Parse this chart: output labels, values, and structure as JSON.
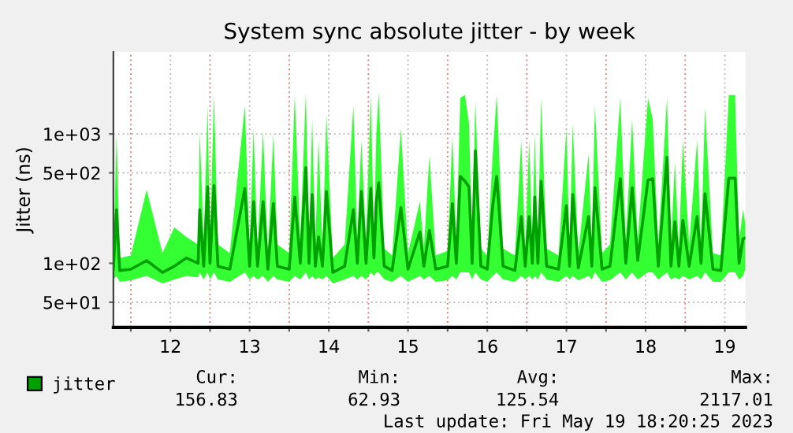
{
  "chart_data": {
    "type": "line",
    "title": "System sync absolute jitter - by week",
    "ylabel": "Jitter (ns)",
    "log": "y",
    "grid": true,
    "legend": "bottom left",
    "marker": "none",
    "line_style": "solid",
    "xlim": [
      11.78,
      19.76
    ],
    "ylim": [
      32,
      4300
    ],
    "xticks": [
      {
        "value": 12,
        "label": null
      },
      {
        "value": 12.5,
        "label": "12"
      },
      {
        "value": 13,
        "label": null
      },
      {
        "value": 13.5,
        "label": "13"
      },
      {
        "value": 14,
        "label": null
      },
      {
        "value": 14.5,
        "label": "14"
      },
      {
        "value": 15,
        "label": null
      },
      {
        "value": 15.5,
        "label": "15"
      },
      {
        "value": 16,
        "label": null
      },
      {
        "value": 16.5,
        "label": "16"
      },
      {
        "value": 17,
        "label": null
      },
      {
        "value": 17.5,
        "label": "17"
      },
      {
        "value": 18,
        "label": null
      },
      {
        "value": 18.5,
        "label": "18"
      },
      {
        "value": 19,
        "label": null
      },
      {
        "value": 19.5,
        "label": "19"
      }
    ],
    "yticks": [
      {
        "value": 50,
        "label": "5e+01"
      },
      {
        "value": 100,
        "label": "1e+02"
      },
      {
        "value": 500,
        "label": "5e+02"
      },
      {
        "value": 1000,
        "label": "1e+03"
      }
    ],
    "annotations": [
      "Cur:",
      "156.83",
      "Min:",
      "62.93",
      "Avg:",
      "125.54",
      "Max:",
      "2117.01",
      "Last update: Fri May 19 18:20:25 2023"
    ],
    "series": [
      {
        "name": "jitter",
        "color": "#00a000",
        "x": [
          11.78,
          11.82,
          11.86,
          12.0,
          12.2,
          12.4,
          12.55,
          12.7,
          12.85,
          12.87,
          12.92,
          12.97,
          13.0,
          13.05,
          13.1,
          13.25,
          13.44,
          13.5,
          13.55,
          13.6,
          13.67,
          13.73,
          13.8,
          13.85,
          14.0,
          14.07,
          14.14,
          14.21,
          14.25,
          14.29,
          14.33,
          14.37,
          14.42,
          14.47,
          14.55,
          14.7,
          14.81,
          14.86,
          14.91,
          14.97,
          15.03,
          15.07,
          15.1,
          15.13,
          15.2,
          15.3,
          15.41,
          15.5,
          15.65,
          15.7,
          15.77,
          15.85,
          16.0,
          16.06,
          16.11,
          16.16,
          16.22,
          16.27,
          16.31,
          16.35,
          16.42,
          16.5,
          16.57,
          16.62,
          16.7,
          16.85,
          16.93,
          16.98,
          17.03,
          17.07,
          17.1,
          17.14,
          17.18,
          17.25,
          17.4,
          17.5,
          17.54,
          17.58,
          17.65,
          17.78,
          17.82,
          17.86,
          17.95,
          18.05,
          18.18,
          18.25,
          18.33,
          18.4,
          18.53,
          18.59,
          18.66,
          18.77,
          18.82,
          18.87,
          18.92,
          18.97,
          19.05,
          19.15,
          19.2,
          19.25,
          19.35,
          19.45,
          19.55,
          19.63,
          19.68,
          19.73,
          19.76
        ],
        "values": [
          90,
          260,
          88,
          90,
          105,
          85,
          95,
          110,
          100,
          260,
          95,
          390,
          100,
          400,
          95,
          90,
          380,
          95,
          300,
          95,
          300,
          90,
          290,
          95,
          90,
          325,
          100,
          550,
          100,
          340,
          95,
          160,
          95,
          360,
          85,
          95,
          260,
          100,
          360,
          100,
          380,
          110,
          300,
          420,
          95,
          88,
          270,
          90,
          175,
          95,
          180,
          90,
          95,
          290,
          100,
          470,
          430,
          390,
          100,
          740,
          95,
          90,
          280,
          470,
          95,
          88,
          230,
          95,
          230,
          100,
          325,
          100,
          430,
          95,
          90,
          280,
          95,
          340,
          92,
          230,
          95,
          385,
          90,
          95,
          450,
          100,
          385,
          105,
          440,
          450,
          95,
          660,
          95,
          210,
          95,
          215,
          95,
          230,
          100,
          345,
          90,
          88,
          455,
          455,
          100,
          155,
          157
        ],
        "lower": [
          75,
          80,
          72,
          74,
          80,
          70,
          75,
          80,
          78,
          85,
          75,
          85,
          75,
          85,
          75,
          72,
          85,
          75,
          80,
          75,
          80,
          72,
          80,
          75,
          72,
          80,
          75,
          85,
          75,
          80,
          75,
          78,
          75,
          80,
          70,
          75,
          80,
          75,
          80,
          75,
          85,
          80,
          85,
          85,
          75,
          72,
          80,
          72,
          80,
          75,
          80,
          72,
          74,
          80,
          75,
          85,
          85,
          85,
          75,
          85,
          75,
          72,
          80,
          85,
          75,
          72,
          80,
          75,
          80,
          75,
          80,
          75,
          85,
          75,
          72,
          80,
          75,
          80,
          74,
          80,
          75,
          85,
          72,
          74,
          85,
          75,
          85,
          75,
          85,
          85,
          75,
          85,
          75,
          78,
          75,
          80,
          75,
          80,
          75,
          85,
          72,
          72,
          85,
          85,
          75,
          80,
          90
        ],
        "upper": [
          120,
          1000,
          110,
          115,
          370,
          120,
          190,
          160,
          140,
          1050,
          150,
          1650,
          150,
          2000,
          140,
          120,
          1650,
          130,
          1100,
          130,
          1050,
          120,
          1000,
          140,
          120,
          2000,
          150,
          2100,
          150,
          1300,
          140,
          900,
          130,
          1400,
          110,
          140,
          1650,
          150,
          900,
          150,
          2000,
          160,
          1000,
          2100,
          130,
          115,
          1100,
          120,
          300,
          130,
          680,
          115,
          125,
          950,
          150,
          1900,
          2000,
          1200,
          150,
          1800,
          130,
          115,
          700,
          2000,
          130,
          115,
          900,
          130,
          900,
          140,
          1000,
          140,
          1900,
          130,
          115,
          1100,
          130,
          1200,
          120,
          700,
          130,
          1650,
          120,
          140,
          1900,
          150,
          1300,
          150,
          1900,
          1300,
          140,
          1900,
          140,
          600,
          130,
          900,
          140,
          900,
          140,
          1600,
          120,
          115,
          2000,
          2000,
          150,
          260,
          200
        ]
      }
    ]
  }
}
